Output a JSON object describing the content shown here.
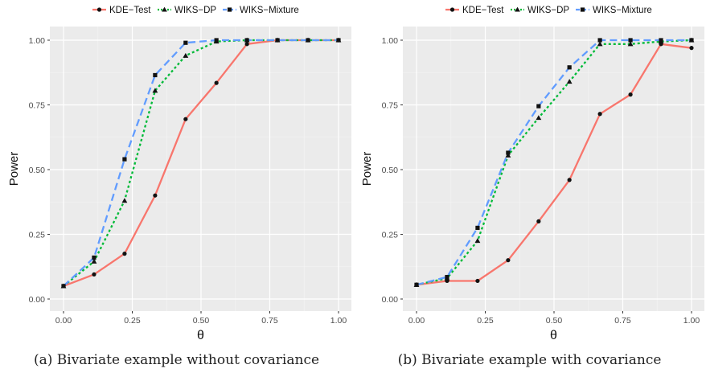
{
  "colors": {
    "panel_bg": "#ebebeb",
    "grid_major": "#ffffff",
    "axis_text": "#4d4d4d",
    "series": [
      "#f8766d",
      "#00ba38",
      "#619cff"
    ]
  },
  "chart_data": [
    {
      "type": "line",
      "caption_label": "(a)",
      "caption_text": "Bivariate example without covariance",
      "xlabel": "θ",
      "ylabel": "Power",
      "xlim": [
        0,
        1
      ],
      "ylim": [
        0,
        1
      ],
      "xticks": [
        "0.00",
        "0.25",
        "0.50",
        "0.75",
        "1.00"
      ],
      "yticks": [
        "0.00",
        "0.25",
        "0.50",
        "0.75",
        "1.00"
      ],
      "grid": true,
      "legend_position": "top",
      "x": [
        0,
        0.111,
        0.222,
        0.333,
        0.444,
        0.556,
        0.667,
        0.778,
        0.889,
        1.0
      ],
      "series": [
        {
          "name": "KDE−Test",
          "marker": "circle",
          "line": "solid",
          "values": [
            0.05,
            0.095,
            0.175,
            0.4,
            0.695,
            0.835,
            0.985,
            1.0,
            1.0,
            1.0
          ]
        },
        {
          "name": "WIKS−DP",
          "marker": "triangle",
          "line": "dotted",
          "values": [
            0.05,
            0.145,
            0.38,
            0.805,
            0.94,
            0.995,
            1.0,
            1.0,
            1.0,
            1.0
          ]
        },
        {
          "name": "WIKS−Mixture",
          "marker": "square",
          "line": "dashed",
          "values": [
            0.05,
            0.16,
            0.54,
            0.865,
            0.99,
            1.0,
            1.0,
            1.0,
            1.0,
            1.0
          ]
        }
      ]
    },
    {
      "type": "line",
      "caption_label": "(b)",
      "caption_text": "Bivariate example with covariance",
      "xlabel": "θ",
      "ylabel": "Power",
      "xlim": [
        0,
        1
      ],
      "ylim": [
        0,
        1
      ],
      "xticks": [
        "0.00",
        "0.25",
        "0.50",
        "0.75",
        "1.00"
      ],
      "yticks": [
        "0.00",
        "0.25",
        "0.50",
        "0.75",
        "1.00"
      ],
      "grid": true,
      "legend_position": "top",
      "x": [
        0,
        0.111,
        0.222,
        0.333,
        0.444,
        0.556,
        0.667,
        0.778,
        0.889,
        1.0
      ],
      "series": [
        {
          "name": "KDE−Test",
          "marker": "circle",
          "line": "solid",
          "values": [
            0.055,
            0.07,
            0.07,
            0.15,
            0.3,
            0.46,
            0.715,
            0.79,
            0.985,
            0.97
          ]
        },
        {
          "name": "WIKS−DP",
          "marker": "triangle",
          "line": "dotted",
          "values": [
            0.055,
            0.08,
            0.225,
            0.555,
            0.7,
            0.84,
            0.985,
            0.985,
            0.995,
            1.0
          ]
        },
        {
          "name": "WIKS−Mixture",
          "marker": "square",
          "line": "dashed",
          "values": [
            0.055,
            0.085,
            0.275,
            0.565,
            0.745,
            0.895,
            1.0,
            1.0,
            1.0,
            1.0
          ]
        }
      ]
    }
  ]
}
